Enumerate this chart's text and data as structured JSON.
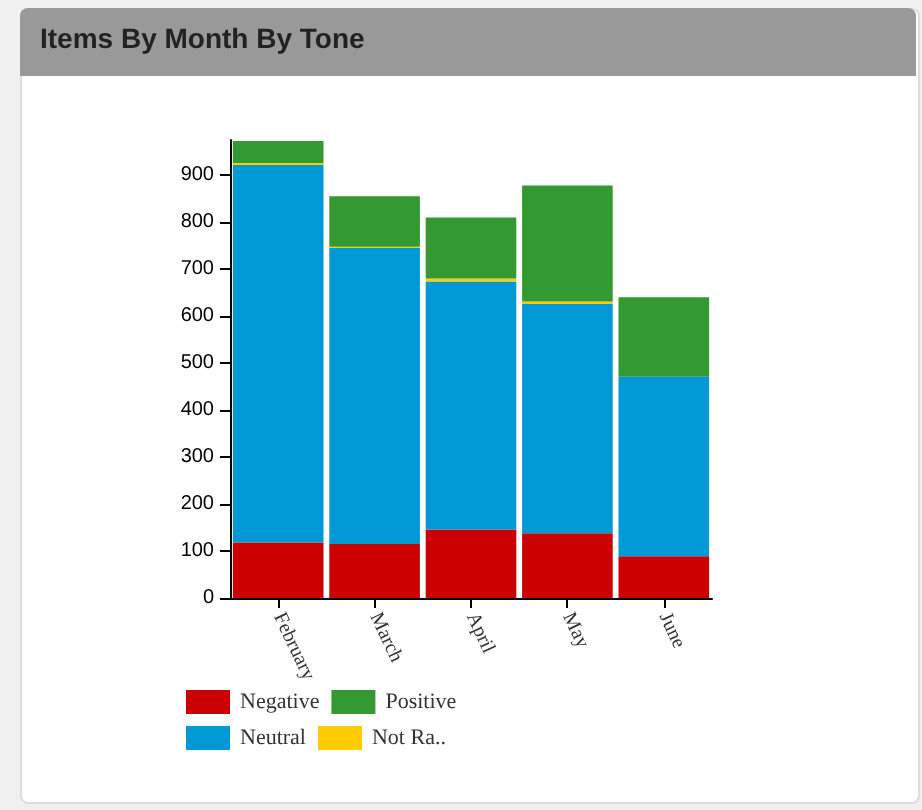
{
  "chart_data": {
    "type": "bar",
    "title": "Items By Month By Tone",
    "stacked": true,
    "categories": [
      "February",
      "March",
      "April",
      "May",
      "June"
    ],
    "series": [
      {
        "name": "Negative",
        "color": "#cc0000",
        "values": [
          118,
          115,
          146,
          138,
          89
        ]
      },
      {
        "name": "Neutral",
        "color": "#0099d6",
        "values": [
          804,
          630,
          528,
          488,
          382
        ]
      },
      {
        "name": "Not Ra..",
        "color": "#ffcc00",
        "values": [
          4,
          3,
          6,
          5,
          0
        ]
      },
      {
        "name": "Positive",
        "color": "#339933",
        "values": [
          47,
          107,
          130,
          247,
          169
        ]
      }
    ],
    "ylim": [
      0,
      975
    ],
    "yticks": [
      0,
      100,
      200,
      300,
      400,
      500,
      600,
      700,
      800,
      900
    ],
    "grid": false,
    "legend": "bottom left"
  }
}
